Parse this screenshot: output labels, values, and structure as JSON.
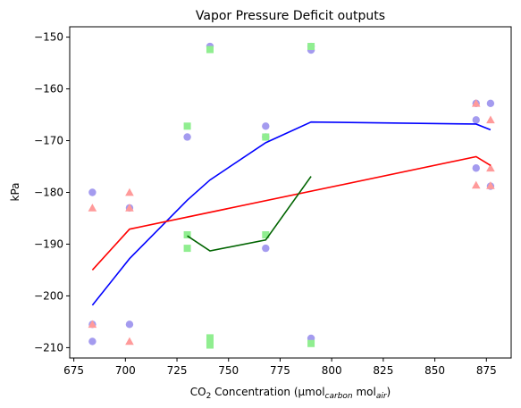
{
  "chart_data": {
    "type": "scatter",
    "title": "Vapor Pressure Deficit outputs",
    "xlabel": {
      "prefix": "CO",
      "co2_sub": "2",
      "middle": " Concentration (µmol",
      "carbon_sub": "carbon",
      "space": " mol",
      "air_sub": "air",
      "suffix": ")"
    },
    "ylabel": "kPa",
    "xlim": [
      673,
      887
    ],
    "ylim": [
      -212,
      -148
    ],
    "xticks": [
      675,
      700,
      725,
      750,
      775,
      800,
      825,
      850,
      875
    ],
    "yticks": [
      -210,
      -200,
      -190,
      -180,
      -170,
      -160,
      -150
    ],
    "grid": false,
    "scatter_series": [
      {
        "marker": "circle",
        "color": "#a49bef",
        "points": [
          [
            684,
            -180.0
          ],
          [
            684,
            -205.5
          ],
          [
            684,
            -208.8
          ],
          [
            702,
            -183.0
          ],
          [
            702,
            -205.5
          ],
          [
            730,
            -169.3
          ],
          [
            741,
            -151.8
          ],
          [
            768,
            -167.2
          ],
          [
            768,
            -169.3
          ],
          [
            768,
            -190.8
          ],
          [
            790,
            -151.8
          ],
          [
            790,
            -152.5
          ],
          [
            790,
            -208.2
          ],
          [
            870,
            -162.8
          ],
          [
            870,
            -166.0
          ],
          [
            870,
            -175.3
          ],
          [
            877,
            -162.8
          ],
          [
            877,
            -178.8
          ]
        ]
      },
      {
        "marker": "triangle",
        "color": "#ff9a9a",
        "points": [
          [
            684,
            -183.0
          ],
          [
            684,
            -205.5
          ],
          [
            702,
            -180.0
          ],
          [
            702,
            -183.0
          ],
          [
            702,
            -208.8
          ],
          [
            870,
            -162.8
          ],
          [
            870,
            -178.6
          ],
          [
            877,
            -166.0
          ],
          [
            877,
            -175.3
          ],
          [
            877,
            -178.7
          ]
        ]
      },
      {
        "marker": "square",
        "color": "#90ee90",
        "points": [
          [
            730,
            -167.2
          ],
          [
            730,
            -188.2
          ],
          [
            730,
            -190.8
          ],
          [
            741,
            -152.4
          ],
          [
            741,
            -208.1
          ],
          [
            741,
            -209.0
          ],
          [
            741,
            -209.5
          ],
          [
            768,
            -169.3
          ],
          [
            768,
            -188.2
          ],
          [
            790,
            -151.8
          ],
          [
            790,
            -209.2
          ]
        ]
      }
    ],
    "line_series": [
      {
        "color": "#0000ff",
        "points": [
          [
            684,
            -201.8
          ],
          [
            702,
            -192.8
          ],
          [
            730,
            -181.5
          ],
          [
            741,
            -177.6
          ],
          [
            768,
            -170.4
          ],
          [
            790,
            -166.4
          ],
          [
            870,
            -166.8
          ],
          [
            877,
            -167.9
          ]
        ]
      },
      {
        "color": "#ff0000",
        "points": [
          [
            684,
            -195.0
          ],
          [
            702,
            -187.1
          ],
          [
            870,
            -173.1
          ],
          [
            877,
            -174.8
          ]
        ]
      },
      {
        "color": "#006400",
        "points": [
          [
            730,
            -188.4
          ],
          [
            741,
            -191.3
          ],
          [
            768,
            -189.2
          ],
          [
            790,
            -176.9
          ]
        ]
      }
    ]
  }
}
